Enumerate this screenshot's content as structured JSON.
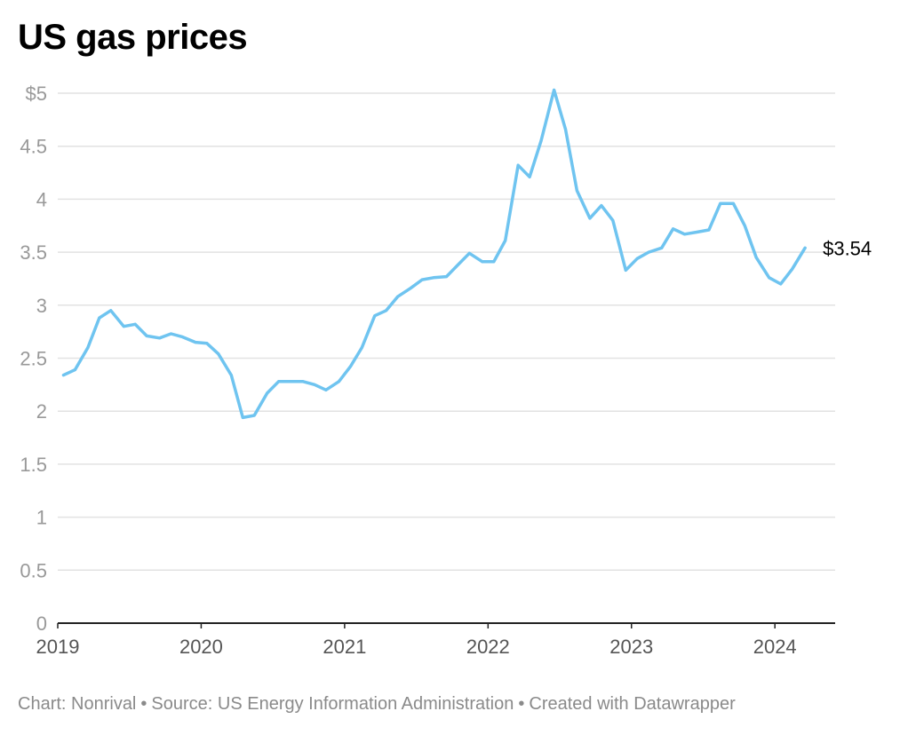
{
  "title": "US gas prices",
  "chart_data": {
    "type": "line",
    "title": "US gas prices",
    "xlabel": "",
    "ylabel": "",
    "ylim": [
      0,
      5
    ],
    "xlim": [
      2019.0,
      2024.42
    ],
    "y_ticks": [
      {
        "value": 0,
        "label": "0"
      },
      {
        "value": 0.5,
        "label": "0.5"
      },
      {
        "value": 1,
        "label": "1"
      },
      {
        "value": 1.5,
        "label": "1.5"
      },
      {
        "value": 2,
        "label": "2"
      },
      {
        "value": 2.5,
        "label": "2.5"
      },
      {
        "value": 3,
        "label": "3"
      },
      {
        "value": 3.5,
        "label": "3.5"
      },
      {
        "value": 4,
        "label": "4"
      },
      {
        "value": 4.5,
        "label": "4.5"
      },
      {
        "value": 5,
        "label": "$5"
      }
    ],
    "x_ticks": [
      {
        "value": 2019,
        "label": "2019"
      },
      {
        "value": 2020,
        "label": "2020"
      },
      {
        "value": 2021,
        "label": "2021"
      },
      {
        "value": 2022,
        "label": "2022"
      },
      {
        "value": 2023,
        "label": "2023"
      },
      {
        "value": 2024,
        "label": "2024"
      }
    ],
    "grid": true,
    "series": [
      {
        "name": "US gas price",
        "color": "#6fc4f0",
        "end_label": "$3.54",
        "x": [
          2019.04,
          2019.12,
          2019.21,
          2019.29,
          2019.37,
          2019.46,
          2019.54,
          2019.62,
          2019.71,
          2019.79,
          2019.87,
          2019.96,
          2020.04,
          2020.12,
          2020.21,
          2020.29,
          2020.37,
          2020.46,
          2020.54,
          2020.62,
          2020.71,
          2020.79,
          2020.87,
          2020.96,
          2021.04,
          2021.12,
          2021.21,
          2021.29,
          2021.37,
          2021.46,
          2021.54,
          2021.62,
          2021.71,
          2021.79,
          2021.87,
          2021.96,
          2022.04,
          2022.12,
          2022.21,
          2022.29,
          2022.37,
          2022.46,
          2022.54,
          2022.62,
          2022.71,
          2022.79,
          2022.87,
          2022.96,
          2023.04,
          2023.12,
          2023.21,
          2023.29,
          2023.37,
          2023.46,
          2023.54,
          2023.62,
          2023.71,
          2023.79,
          2023.87,
          2023.96,
          2024.04,
          2024.12,
          2024.21
        ],
        "values": [
          2.34,
          2.39,
          2.6,
          2.88,
          2.95,
          2.8,
          2.82,
          2.71,
          2.69,
          2.73,
          2.7,
          2.65,
          2.64,
          2.54,
          2.34,
          1.94,
          1.96,
          2.17,
          2.28,
          2.28,
          2.28,
          2.25,
          2.2,
          2.28,
          2.42,
          2.6,
          2.9,
          2.95,
          3.08,
          3.16,
          3.24,
          3.26,
          3.27,
          3.38,
          3.49,
          3.41,
          3.41,
          3.61,
          4.32,
          4.21,
          4.55,
          5.03,
          4.66,
          4.08,
          3.82,
          3.94,
          3.8,
          3.33,
          3.44,
          3.5,
          3.54,
          3.72,
          3.67,
          3.69,
          3.71,
          3.96,
          3.96,
          3.75,
          3.45,
          3.26,
          3.2,
          3.34,
          3.54
        ]
      }
    ]
  },
  "footer": {
    "credit": "Chart: Nonrival",
    "source": "Source: US Energy Information Administration",
    "tool": "Created with Datawrapper",
    "separator": "•"
  }
}
